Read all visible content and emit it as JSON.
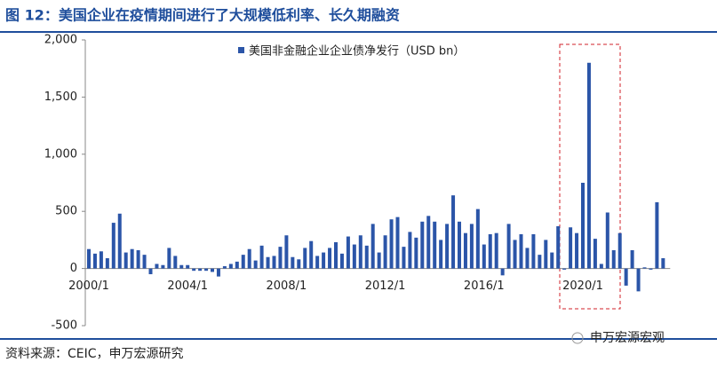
{
  "chart_data": {
    "type": "bar",
    "title": "图 12：美国企业在疫情期间进行了大规模低利率、长久期融资",
    "legend": "美国非金融企业企业债净发行（USD bn）",
    "source": "资料来源：CEIC，申万宏源研究",
    "brand": "申万宏源宏观",
    "color": "#2b55a8",
    "ylim": [
      -500,
      2000
    ],
    "yticks": [
      {
        "value": 2000,
        "label": "2,000"
      },
      {
        "value": 1500,
        "label": "1,500"
      },
      {
        "value": 1000,
        "label": "1,000"
      },
      500,
      0,
      -500
    ],
    "categories": [
      "2000/1",
      null,
      null,
      null,
      null,
      null,
      null,
      null,
      null,
      null,
      null,
      null,
      null,
      null,
      null,
      null,
      "2004/1",
      null,
      null,
      null,
      null,
      null,
      null,
      null,
      null,
      null,
      null,
      null,
      null,
      null,
      null,
      null,
      "2008/1",
      null,
      null,
      null,
      null,
      null,
      null,
      null,
      null,
      null,
      null,
      null,
      null,
      null,
      null,
      null,
      "2012/1",
      null,
      null,
      null,
      null,
      null,
      null,
      null,
      null,
      null,
      null,
      null,
      null,
      null,
      null,
      null,
      "2016/1",
      null,
      null,
      null,
      null,
      null,
      null,
      null,
      null,
      null,
      null,
      null,
      null,
      null,
      null,
      null,
      "2020/1",
      null,
      null,
      null,
      null,
      null,
      null,
      null,
      null,
      null,
      null,
      null,
      null,
      null
    ],
    "values": [
      170,
      130,
      150,
      90,
      400,
      480,
      140,
      170,
      160,
      120,
      -50,
      40,
      30,
      180,
      110,
      30,
      30,
      -20,
      -20,
      -20,
      -30,
      -70,
      20,
      40,
      60,
      120,
      170,
      70,
      200,
      100,
      110,
      190,
      290,
      100,
      80,
      180,
      240,
      110,
      140,
      180,
      230,
      130,
      280,
      210,
      290,
      200,
      390,
      140,
      290,
      430,
      450,
      190,
      320,
      270,
      410,
      460,
      410,
      250,
      390,
      640,
      410,
      310,
      390,
      520,
      210,
      300,
      310,
      -60,
      390,
      250,
      300,
      180,
      300,
      120,
      250,
      140,
      370,
      -10,
      360,
      310,
      750,
      1800,
      260,
      40,
      490,
      160,
      310,
      -150,
      160,
      -200,
      10,
      -10,
      580,
      90
    ]
  }
}
